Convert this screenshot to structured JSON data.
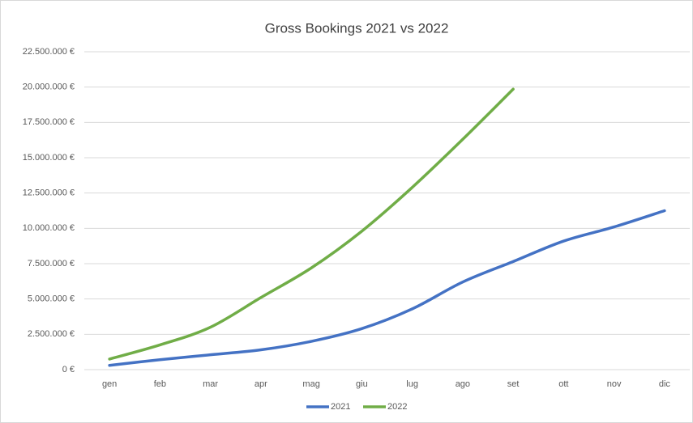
{
  "chart_data": {
    "type": "line",
    "title": "Gross Bookings 2021 vs 2022",
    "categories": [
      "gen",
      "feb",
      "mar",
      "apr",
      "mag",
      "giu",
      "lug",
      "ago",
      "set",
      "ott",
      "nov",
      "dic"
    ],
    "series": [
      {
        "name": "2021",
        "color": "#4472c4",
        "values": [
          300000,
          700000,
          1050000,
          1400000,
          2000000,
          2900000,
          4300000,
          6200000,
          7650000,
          9100000,
          10100000,
          11250000
        ]
      },
      {
        "name": "2022",
        "color": "#70ad47",
        "values": [
          750000,
          1750000,
          3000000,
          5100000,
          7200000,
          9800000,
          12900000,
          16300000,
          19850000,
          null,
          null,
          null
        ]
      }
    ],
    "ylim": [
      0,
      22500000
    ],
    "yticks": [
      {
        "value": 0,
        "label": "0 €"
      },
      {
        "value": 2500000,
        "label": "2.500.000 €"
      },
      {
        "value": 5000000,
        "label": "5.000.000 €"
      },
      {
        "value": 7500000,
        "label": "7.500.000 €"
      },
      {
        "value": 10000000,
        "label": "10.000.000 €"
      },
      {
        "value": 12500000,
        "label": "12.500.000 €"
      },
      {
        "value": 15000000,
        "label": "15.000.000 €"
      },
      {
        "value": 17500000,
        "label": "17.500.000 €"
      },
      {
        "value": 20000000,
        "label": "20.000.000 €"
      },
      {
        "value": 22500000,
        "label": "22.500.000 €"
      }
    ],
    "grid": true,
    "smooth": true,
    "legend": "bottom"
  }
}
